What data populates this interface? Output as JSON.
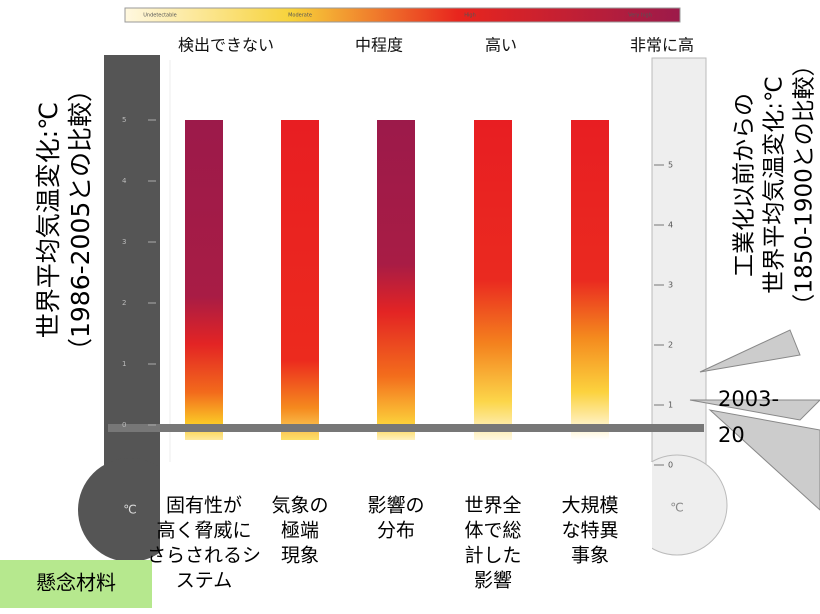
{
  "legend_bar": {
    "labels": [
      "Undetectable",
      "Moderate",
      "High",
      "Very high"
    ]
  },
  "levels": [
    "検出できない",
    "中程度",
    "高い",
    "非常に高"
  ],
  "left_axis": {
    "label": [
      "世界平均気温変化:℃",
      "（1986-2005との比較）"
    ],
    "ticks": [
      "5",
      "4",
      "3",
      "2",
      "1",
      "0"
    ],
    "unit": "℃"
  },
  "right_axis": {
    "label": [
      "工業化以前からの",
      "世界平均気温変化:℃",
      "（1850-1900との比較）"
    ],
    "ticks": [
      "5",
      "4",
      "3",
      "2",
      "1",
      "0"
    ],
    "unit": "℃"
  },
  "callout": [
    "2003-",
    "20"
  ],
  "columns": [
    [
      "固有性が",
      "高く脅威に",
      "さらされるシ",
      "ステム"
    ],
    [
      "気象の",
      "極端",
      "現象"
    ],
    [
      "影響の",
      "分布"
    ],
    [
      "世界全",
      "体で総",
      "計した",
      "影響"
    ],
    [
      "大規模",
      "な特異",
      "事象"
    ]
  ],
  "footer": "懸念材料"
}
